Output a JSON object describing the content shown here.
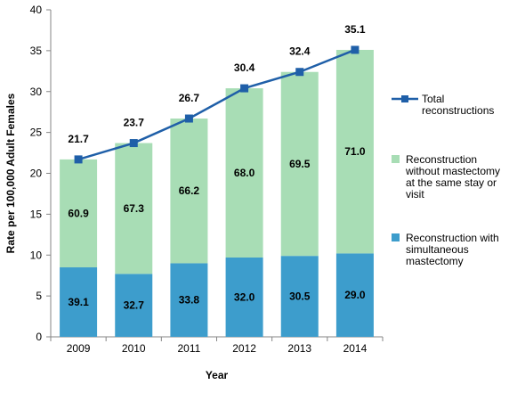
{
  "chart_data": {
    "type": "bar",
    "stacked": true,
    "categories": [
      "2009",
      "2010",
      "2011",
      "2012",
      "2013",
      "2014"
    ],
    "xlabel": "Year",
    "ylabel": "Rate per 100,000 Adult Females",
    "ylim": [
      0,
      40
    ],
    "yticks": [
      "0",
      "5",
      "10",
      "15",
      "20",
      "25",
      "30",
      "35",
      "40"
    ],
    "grid": false,
    "legend_position": "right",
    "bar_values": {
      "simultaneous": [
        8.5,
        7.7,
        9.0,
        9.7,
        9.9,
        10.2
      ],
      "without": [
        13.2,
        16.0,
        17.7,
        20.7,
        22.5,
        24.9
      ]
    },
    "series": [
      {
        "name": "Total reconstructions",
        "kind": "line",
        "color": "#1F5FA8",
        "values": [
          21.7,
          23.7,
          26.7,
          30.4,
          32.4,
          35.1
        ],
        "labels": [
          "21.7",
          "23.7",
          "26.7",
          "30.4",
          "32.4",
          "35.1"
        ]
      },
      {
        "name": "Reconstruction without mastectomy at the same stay or visit",
        "kind": "bar",
        "color": "#A8DDB5",
        "labels": [
          "60.9",
          "67.3",
          "66.2",
          "68.0",
          "69.5",
          "71.0"
        ]
      },
      {
        "name": "Reconstruction with simultaneous mastectomy",
        "kind": "bar",
        "color": "#3D9DCC",
        "labels": [
          "39.1",
          "32.7",
          "33.8",
          "32.0",
          "30.5",
          "29.0"
        ]
      }
    ],
    "legend": {
      "total": [
        "Total",
        "reconstructions"
      ],
      "without": [
        "Reconstruction",
        "without mastectomy",
        "at the same stay or",
        "visit"
      ],
      "simultaneous": [
        "Reconstruction with",
        "simultaneous",
        "mastectomy"
      ]
    }
  }
}
